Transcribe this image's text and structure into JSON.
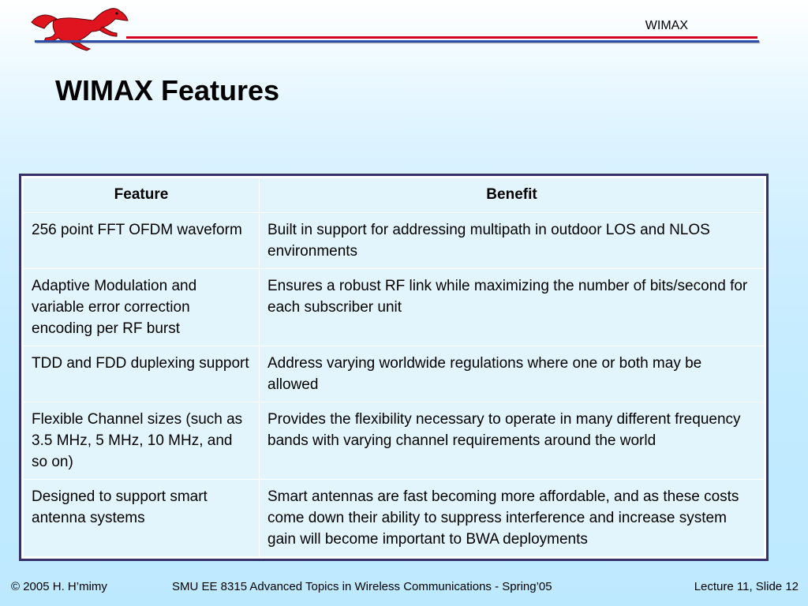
{
  "header": {
    "title": "WIMAX"
  },
  "slide": {
    "title": "WIMAX Features"
  },
  "table": {
    "headers": [
      "Feature",
      "Benefit"
    ],
    "rows": [
      {
        "feature": "256 point FFT OFDM waveform",
        "benefit": "Built in support for addressing multipath in outdoor LOS and NLOS environments"
      },
      {
        "feature": "Adaptive Modulation and variable error correction encoding per RF burst",
        "benefit": "Ensures a robust RF link while maximizing the number of bits/second for each subscriber unit"
      },
      {
        "feature": "TDD and FDD duplexing support",
        "benefit": "Address varying worldwide regulations where one or both may be allowed"
      },
      {
        "feature": "Flexible Channel sizes (such as 3.5 MHz, 5 MHz, 10 MHz, and so on)",
        "benefit": "Provides the flexibility necessary to operate in many different frequency bands with varying channel requirements around the world"
      },
      {
        "feature": "Designed to support smart antenna systems",
        "benefit": "Smart antennas are fast becoming more affordable, and as these costs come down their ability to suppress interference and increase system gain will become important to BWA deployments"
      }
    ]
  },
  "footer": {
    "copyright": "© 2005 H. H’mimy",
    "course": "SMU EE 8315 Advanced Topics in Wireless Communications - Spring’05",
    "slide_ref": "Lecture 11, Slide 12"
  },
  "colors": {
    "logo_red": "#e0141e",
    "rule_red": "#d8001c",
    "rule_blue": "#2d4da8",
    "table_border": "#34306a",
    "cell_fill": "#e3f5fc"
  },
  "logo": {
    "icon": "mustang-icon"
  }
}
